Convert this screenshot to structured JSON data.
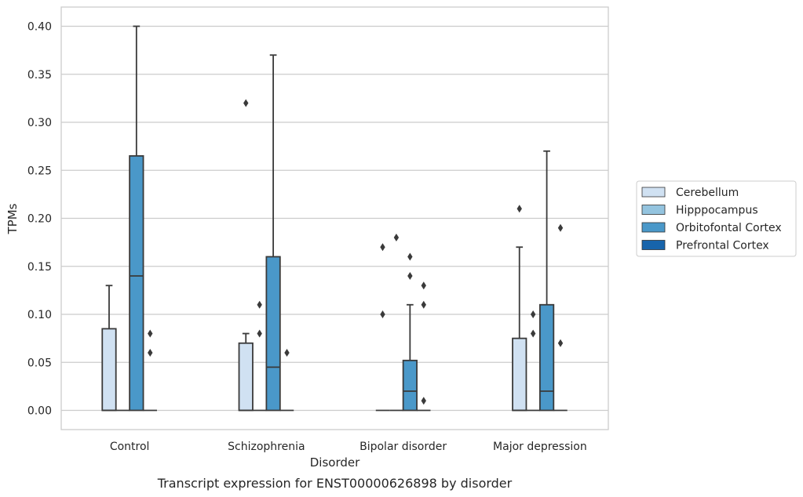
{
  "caption": "Transcript expression for ENST00000626898 by disorder",
  "chart_data": {
    "type": "box",
    "title": "",
    "xlabel": "Disorder",
    "ylabel": "TPMs",
    "ylim": [
      -0.02,
      0.42
    ],
    "yticks": [
      "0.00",
      "0.05",
      "0.10",
      "0.15",
      "0.20",
      "0.25",
      "0.30",
      "0.35",
      "0.40"
    ],
    "categories": [
      "Control",
      "Schizophrenia",
      "Bipolar disorder",
      "Major depression"
    ],
    "grid": "horizontal",
    "legend_position": "right",
    "series": [
      {
        "name": "Cerebellum",
        "color": "#d0e1f2",
        "boxes": [
          {
            "q1": 0.0,
            "median": 0.0,
            "q3": 0.085,
            "whislo": 0.0,
            "whishi": 0.13,
            "fliers": []
          },
          {
            "q1": 0.0,
            "median": 0.0,
            "q3": 0.07,
            "whislo": 0.0,
            "whishi": 0.08,
            "fliers": [
              0.32
            ]
          },
          {
            "q1": 0.0,
            "median": 0.0,
            "q3": 0.0,
            "whislo": 0.0,
            "whishi": 0.0,
            "fliers": [
              0.1,
              0.17
            ]
          },
          {
            "q1": 0.0,
            "median": 0.0,
            "q3": 0.075,
            "whislo": 0.0,
            "whishi": 0.17,
            "fliers": [
              0.21
            ]
          }
        ]
      },
      {
        "name": "Hipppocampus",
        "color": "#94c4df",
        "boxes": [
          {
            "q1": 0.0,
            "median": 0.0,
            "q3": 0.0,
            "whislo": 0.0,
            "whishi": 0.0,
            "fliers": []
          },
          {
            "q1": 0.0,
            "median": 0.0,
            "q3": 0.0,
            "whislo": 0.0,
            "whishi": 0.0,
            "fliers": [
              0.08,
              0.11
            ]
          },
          {
            "q1": 0.0,
            "median": 0.0,
            "q3": 0.0,
            "whislo": 0.0,
            "whishi": 0.0,
            "fliers": [
              0.18
            ]
          },
          {
            "q1": 0.0,
            "median": 0.0,
            "q3": 0.0,
            "whislo": 0.0,
            "whishi": 0.0,
            "fliers": [
              0.08,
              0.1
            ]
          }
        ]
      },
      {
        "name": "Orbitofontal Cortex",
        "color": "#4a98c9",
        "boxes": [
          {
            "q1": 0.0,
            "median": 0.14,
            "q3": 0.265,
            "whislo": 0.0,
            "whishi": 0.4,
            "fliers": []
          },
          {
            "q1": 0.0,
            "median": 0.045,
            "q3": 0.16,
            "whislo": 0.0,
            "whishi": 0.37,
            "fliers": []
          },
          {
            "q1": 0.0,
            "median": 0.02,
            "q3": 0.052,
            "whislo": 0.0,
            "whishi": 0.11,
            "fliers": [
              0.14,
              0.16
            ]
          },
          {
            "q1": 0.0,
            "median": 0.02,
            "q3": 0.11,
            "whislo": 0.0,
            "whishi": 0.27,
            "fliers": []
          }
        ]
      },
      {
        "name": "Prefrontal Cortex",
        "color": "#1764ab",
        "boxes": [
          {
            "q1": 0.0,
            "median": 0.0,
            "q3": 0.0,
            "whislo": 0.0,
            "whishi": 0.0,
            "fliers": [
              0.06,
              0.08
            ]
          },
          {
            "q1": 0.0,
            "median": 0.0,
            "q3": 0.0,
            "whislo": 0.0,
            "whishi": 0.0,
            "fliers": [
              0.06
            ]
          },
          {
            "q1": 0.0,
            "median": 0.0,
            "q3": 0.0,
            "whislo": 0.0,
            "whishi": 0.0,
            "fliers": [
              0.01,
              0.11,
              0.13
            ]
          },
          {
            "q1": 0.0,
            "median": 0.0,
            "q3": 0.0,
            "whislo": 0.0,
            "whishi": 0.0,
            "fliers": [
              0.07,
              0.19
            ]
          }
        ]
      }
    ]
  }
}
